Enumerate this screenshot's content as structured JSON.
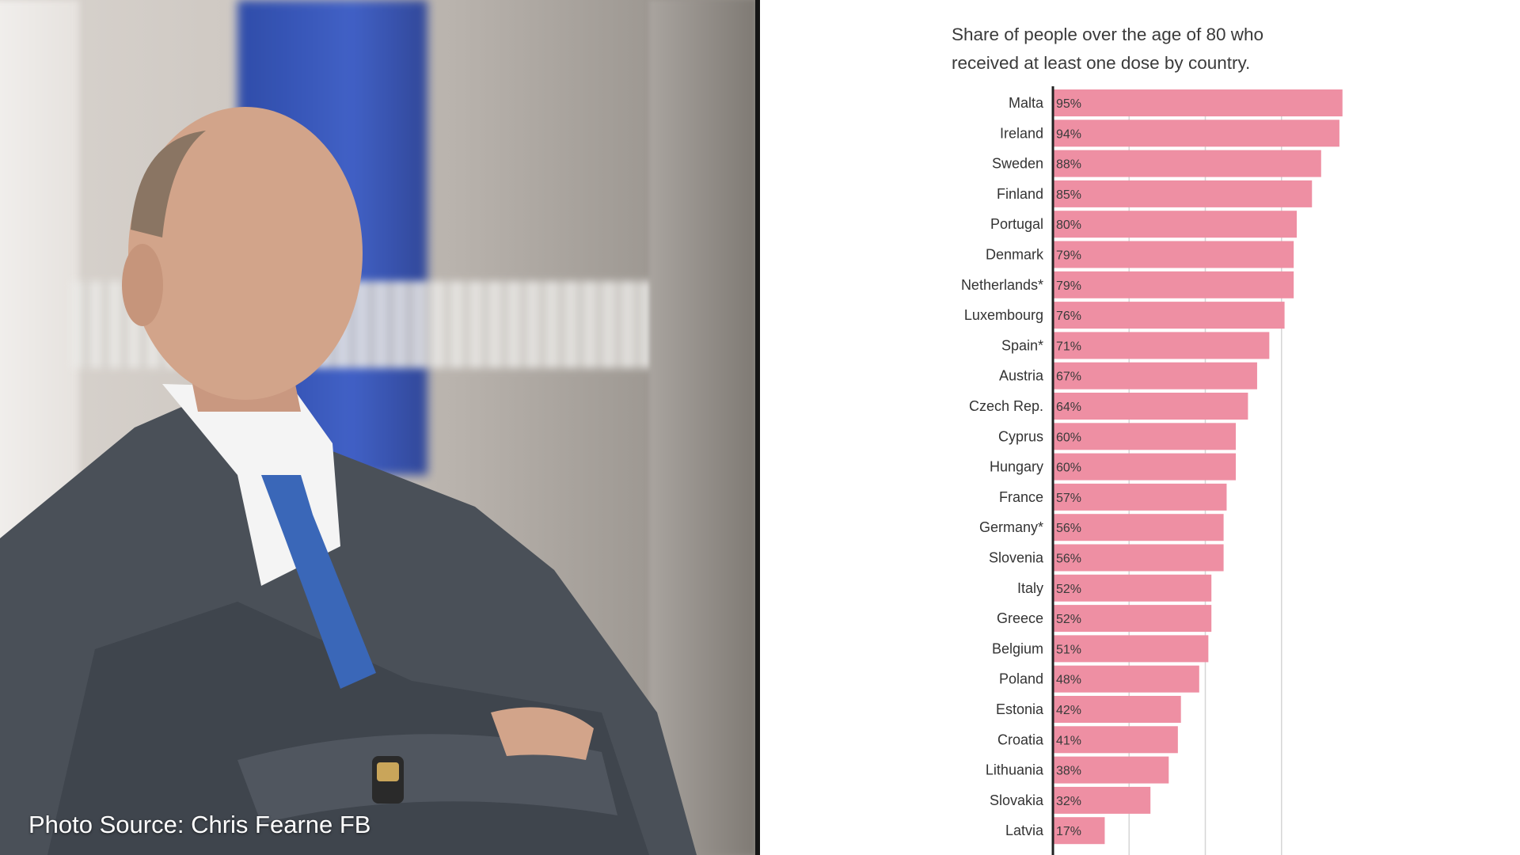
{
  "photo": {
    "caption": "Photo Source: Chris Fearne FB"
  },
  "colors": {
    "bar": "#ee8fa3",
    "gridline": "#d6d6d6",
    "axis": "#222222"
  },
  "chart_data": {
    "type": "bar",
    "orientation": "horizontal",
    "title": "Share of people over the age of 80 who\nreceived at least one dose by country.",
    "xlim": [
      0,
      100
    ],
    "grid": true,
    "categories": [
      "Malta",
      "Ireland",
      "Sweden",
      "Finland",
      "Portugal",
      "Denmark",
      "Netherlands*",
      "Luxembourg",
      "Spain*",
      "Austria",
      "Czech Rep.",
      "Cyprus",
      "Hungary",
      "France",
      "Germany*",
      "Slovenia",
      "Italy",
      "Greece",
      "Belgium",
      "Poland",
      "Estonia",
      "Croatia",
      "Lithuania",
      "Slovakia",
      "Latvia"
    ],
    "values": [
      95,
      94,
      88,
      85,
      80,
      79,
      79,
      76,
      71,
      67,
      64,
      60,
      60,
      57,
      56,
      56,
      52,
      52,
      51,
      48,
      42,
      41,
      38,
      32,
      17
    ],
    "value_labels": [
      "95%",
      "94%",
      "88%",
      "85%",
      "80%",
      "79%",
      "79%",
      "76%",
      "71%",
      "67%",
      "64%",
      "60%",
      "60%",
      "57%",
      "56%",
      "56%",
      "52%",
      "52%",
      "51%",
      "48%",
      "42%",
      "41%",
      "38%",
      "32%",
      "17%"
    ]
  }
}
